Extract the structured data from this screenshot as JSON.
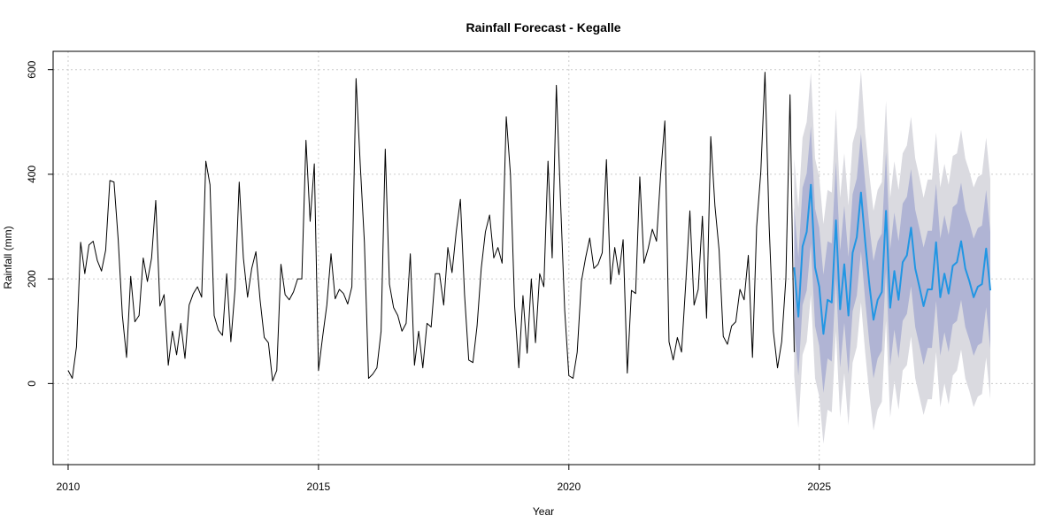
{
  "chart_data": {
    "type": "line",
    "title": "Rainfall Forecast - Kegalle",
    "xlabel": "Year",
    "ylabel": "Rainfall (mm)",
    "xlim": [
      2009.7,
      2029.3
    ],
    "ylim": [
      -155,
      635
    ],
    "x_ticks": [
      2010,
      2015,
      2020,
      2025
    ],
    "y_ticks": [
      0,
      200,
      400,
      600
    ],
    "grid": true,
    "colors": {
      "observed": "#000000",
      "forecast_mean": "#2196E3",
      "pi80_band": "#B0B4D4",
      "pi95_band": "#DADAE0",
      "grid": "#cccccc"
    },
    "series": [
      {
        "role": "observed",
        "start": 2010.0,
        "step": 0.0833333,
        "values": [
          25,
          10,
          70,
          270,
          210,
          265,
          272,
          235,
          215,
          255,
          388,
          385,
          275,
          130,
          50,
          205,
          118,
          130,
          240,
          195,
          240,
          350,
          148,
          170,
          35,
          100,
          55,
          115,
          48,
          150,
          172,
          185,
          165,
          425,
          380,
          130,
          102,
          92,
          210,
          80,
          180,
          385,
          240,
          165,
          220,
          252,
          160,
          88,
          78,
          5,
          25,
          228,
          170,
          160,
          175,
          200,
          200,
          465,
          310,
          420,
          25,
          90,
          150,
          248,
          162,
          180,
          172,
          152,
          185,
          583,
          420,
          270,
          10,
          18,
          30,
          100,
          448,
          190,
          145,
          130,
          100,
          115,
          248,
          35,
          100,
          30,
          115,
          108,
          210,
          210,
          150,
          260,
          212,
          290,
          352,
          170,
          45,
          40,
          110,
          220,
          290,
          322,
          240,
          260,
          230,
          510,
          400,
          148,
          30,
          168,
          58,
          200,
          78,
          210,
          185,
          425,
          240,
          570,
          350,
          140,
          15,
          10,
          60,
          195,
          240,
          278,
          220,
          228,
          250,
          428,
          190,
          260,
          208,
          275,
          20,
          178,
          172,
          395,
          230,
          258,
          295,
          272,
          400,
          502,
          80,
          45,
          88,
          60,
          190,
          330,
          150,
          180,
          320,
          125,
          472,
          340,
          255,
          90,
          75,
          110,
          118,
          180,
          160,
          245,
          50,
          300,
          405,
          595,
          300,
          100,
          30,
          80,
          200,
          552,
          60
        ]
      },
      {
        "role": "forecast_mean",
        "start": 2024.5,
        "step": 0.0833333,
        "values": [
          222,
          128,
          262,
          290,
          380,
          222,
          185,
          95,
          160,
          155,
          312,
          142,
          228,
          130,
          250,
          280,
          365,
          272,
          190,
          122,
          160,
          175,
          330,
          145,
          215,
          160,
          232,
          245,
          298,
          220,
          185,
          148,
          180,
          180,
          270,
          165,
          210,
          172,
          225,
          232,
          272,
          220,
          195,
          165,
          185,
          190,
          258,
          178
        ]
      },
      {
        "role": "pi80_band",
        "start": 2024.5,
        "step": 0.0833333,
        "lower": [
          108,
          15,
          150,
          178,
          268,
          110,
          72,
          -18,
          48,
          42,
          200,
          30,
          116,
          18,
          138,
          168,
          253,
          160,
          78,
          10,
          48,
          63,
          218,
          33,
          103,
          48,
          120,
          133,
          186,
          108,
          73,
          36,
          68,
          68,
          158,
          53,
          98,
          60,
          113,
          120,
          160,
          108,
          83,
          53,
          73,
          78,
          146,
          66
        ],
        "upper": [
          336,
          241,
          374,
          402,
          492,
          334,
          298,
          208,
          272,
          268,
          424,
          254,
          340,
          242,
          362,
          392,
          477,
          384,
          302,
          234,
          272,
          287,
          442,
          257,
          327,
          272,
          344,
          357,
          410,
          332,
          297,
          260,
          292,
          292,
          382,
          277,
          322,
          284,
          337,
          344,
          384,
          332,
          307,
          277,
          297,
          302,
          370,
          290
        ]
      },
      {
        "role": "pi95_band",
        "start": 2024.5,
        "step": 0.0833333,
        "lower": [
          15,
          -85,
          55,
          80,
          170,
          10,
          -25,
          -115,
          -50,
          -55,
          100,
          -65,
          20,
          -80,
          40,
          70,
          155,
          60,
          -20,
          -90,
          -50,
          -35,
          120,
          -65,
          5,
          -50,
          25,
          35,
          90,
          10,
          -25,
          -60,
          -30,
          -30,
          60,
          -45,
          0,
          -40,
          15,
          25,
          65,
          10,
          -15,
          -45,
          -25,
          -20,
          50,
          -30
        ],
        "upper": [
          430,
          335,
          470,
          500,
          595,
          430,
          395,
          305,
          370,
          365,
          525,
          355,
          440,
          340,
          460,
          490,
          598,
          480,
          400,
          330,
          370,
          385,
          540,
          355,
          425,
          370,
          440,
          455,
          510,
          430,
          395,
          355,
          390,
          390,
          480,
          375,
          420,
          380,
          435,
          440,
          485,
          430,
          405,
          375,
          395,
          400,
          470,
          390
        ]
      }
    ]
  }
}
